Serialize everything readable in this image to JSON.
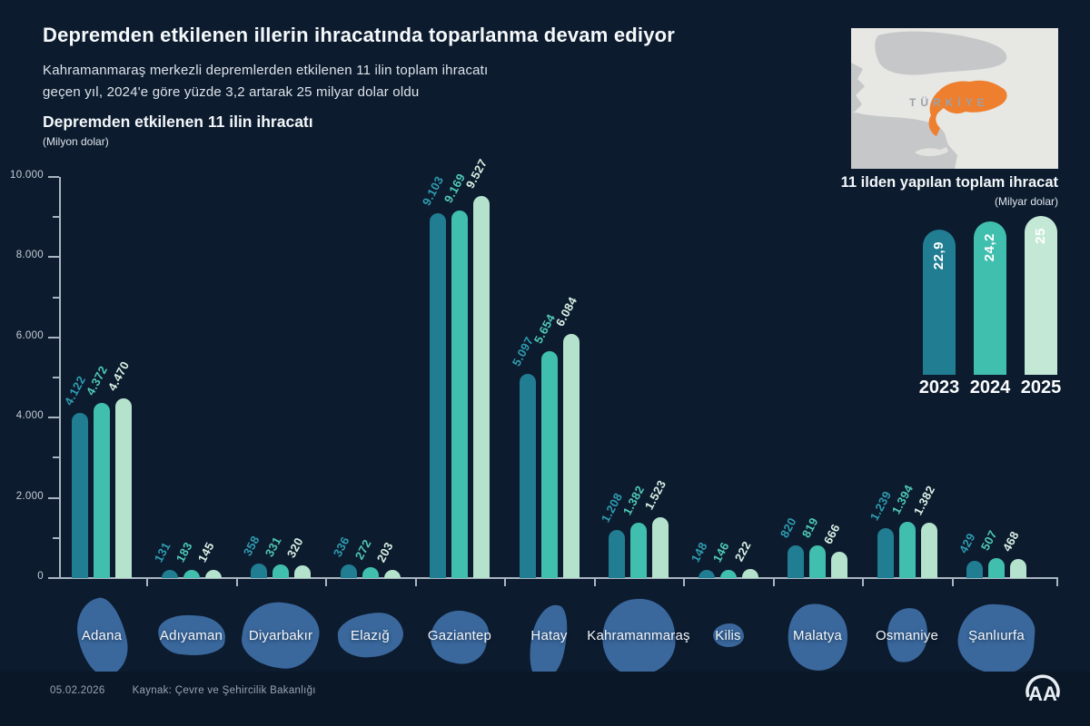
{
  "header": {
    "title": "Depremden etkilenen illerin ihracatında toparlanma devam ediyor",
    "subtitle_line1": "Kahramanmaraş merkezli depremlerden etkilenen 11 ilin toplam ihracatı",
    "subtitle_line2": "geçen yıl, 2024'e göre yüzde 3,2 artarak 25 milyar dolar oldu"
  },
  "chart_data": [
    {
      "id": "provinces-exports",
      "type": "bar",
      "title": "Depremden etkilenen 11 ilin ihracatı",
      "unit": "(Milyon dolar)",
      "categories": [
        "Adana",
        "Adıyaman",
        "Diyarbakır",
        "Elazığ",
        "Gaziantep",
        "Hatay",
        "Kahramanmaraş",
        "Kilis",
        "Malatya",
        "Osmaniye",
        "Şanlıurfa"
      ],
      "series": [
        {
          "name": "2023",
          "color": "#217d92",
          "label_color": "#2f9cb1",
          "values": [
            4122,
            131,
            358,
            336,
            9103,
            5097,
            1208,
            148,
            820,
            1239,
            429
          ],
          "labels": [
            "4.122",
            "131",
            "358",
            "336",
            "9.103",
            "5.097",
            "1.208",
            "148",
            "820",
            "1.239",
            "429"
          ]
        },
        {
          "name": "2024",
          "color": "#41bfae",
          "label_color": "#4fc9b8",
          "values": [
            4372,
            183,
            331,
            272,
            9169,
            5654,
            1382,
            146,
            819,
            1394,
            507
          ],
          "labels": [
            "4.372",
            "183",
            "331",
            "272",
            "9.169",
            "5.654",
            "1.382",
            "146",
            "819",
            "1.394",
            "507"
          ]
        },
        {
          "name": "2025",
          "color": "#b5e2cd",
          "label_color": "#d9f1e5",
          "values": [
            4470,
            145,
            320,
            203,
            9527,
            6084,
            1523,
            222,
            666,
            1382,
            468
          ],
          "labels": [
            "4.470",
            "145",
            "320",
            "203",
            "9.527",
            "6.084",
            "1.523",
            "222",
            "666",
            "1.382",
            "468"
          ]
        }
      ],
      "ylim": [
        0,
        10000
      ],
      "ytick_labels": [
        "0",
        "2.000",
        "4.000",
        "6.000",
        "8.000",
        "10.000"
      ],
      "minor_tick_step": 1000,
      "grid": false,
      "legend": "none"
    },
    {
      "id": "total-exports",
      "type": "bar",
      "title": "11 ilden yapılan toplam ihracat",
      "unit": "(Milyar dolar)",
      "categories": [
        "2023",
        "2024",
        "2025"
      ],
      "values": [
        22.9,
        24.2,
        25
      ],
      "labels": [
        "22,9",
        "24,2",
        "25"
      ],
      "colors": [
        "#217d92",
        "#41bfae",
        "#c3e9d6"
      ],
      "legend": "none"
    }
  ],
  "map": {
    "label": "TÜRKİYE",
    "highlight_color": "#ee7f2e"
  },
  "footer": {
    "date": "05.02.2026",
    "source": "Kaynak: Çevre ve Şehircilik Bakanlığı",
    "logo_text": "AA"
  },
  "colors": {
    "background": "#0c1b2e",
    "axis": "#a9b5c1",
    "province_shape_blue": "#3d6da3"
  }
}
